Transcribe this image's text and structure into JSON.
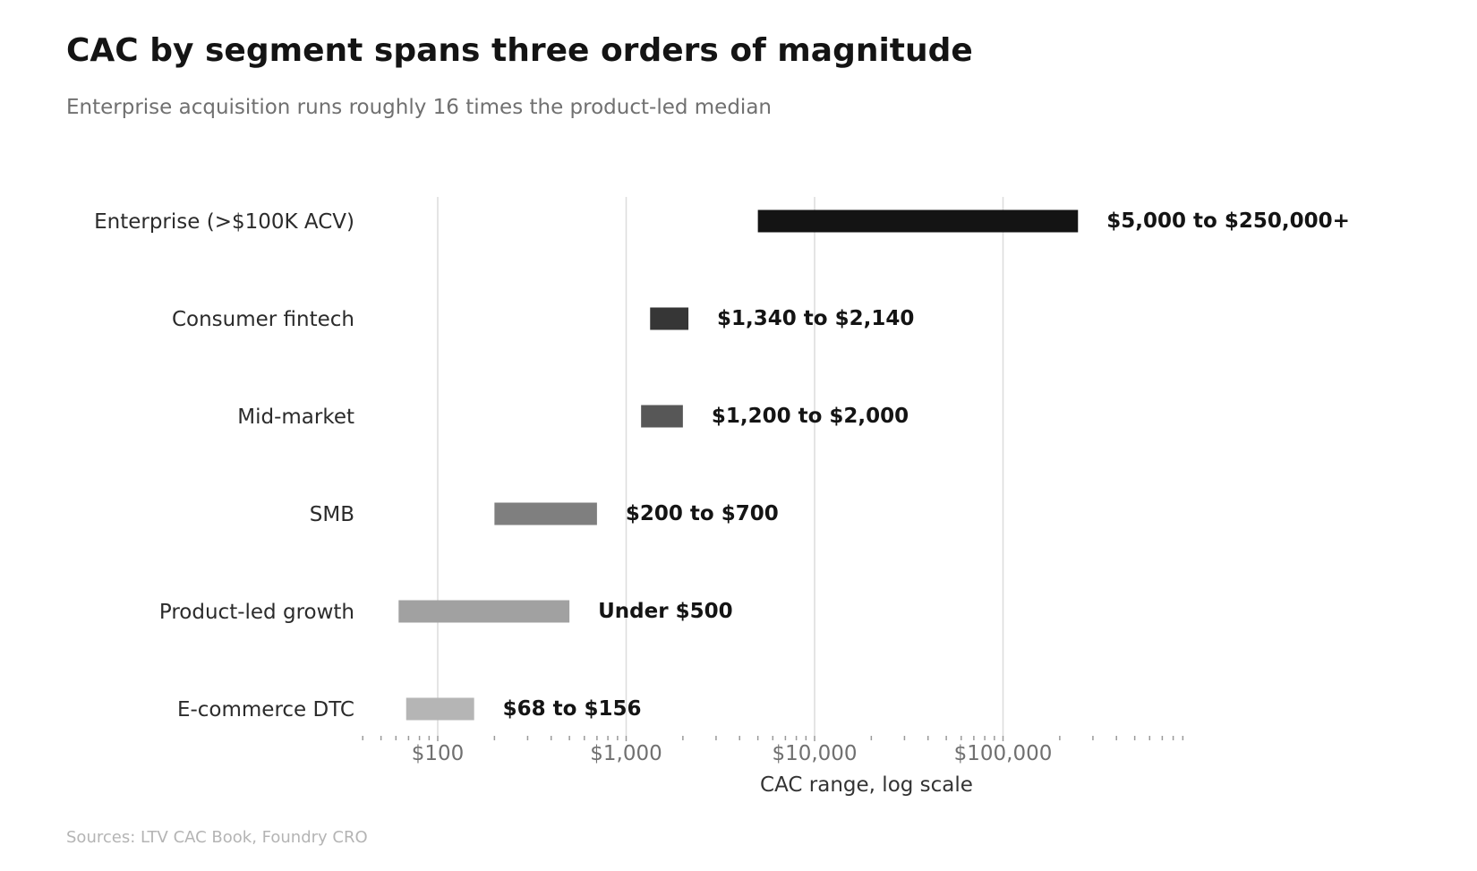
{
  "title": "CAC by segment spans three orders of magnitude",
  "subtitle": "Enterprise acquisition runs roughly 16 times the product-led median",
  "source": "Sources: LTV CAC Book, Foundry CRO",
  "chart_data": {
    "type": "bar",
    "orientation": "horizontal-range",
    "title": "CAC by segment spans three orders of magnitude",
    "xlabel": "CAC range, log scale",
    "xscale": "log",
    "xlim": [
      40,
      1000000
    ],
    "xticks": [
      {
        "value": 100,
        "label": "$100"
      },
      {
        "value": 1000,
        "label": "$1,000"
      },
      {
        "value": 10000,
        "label": "$10,000"
      },
      {
        "value": 100000,
        "label": "$100,000"
      }
    ],
    "grid": "vertical-major",
    "categories": [
      "Enterprise (>$100K ACV)",
      "Consumer fintech",
      "Mid-market",
      "SMB",
      "Product-led growth",
      "E-commerce DTC"
    ],
    "ranges": [
      {
        "low": 5000,
        "high": 250000,
        "label": "$5,000 to $250,000+",
        "color": "#141414"
      },
      {
        "low": 1340,
        "high": 2140,
        "label": "$1,340 to $2,140",
        "color": "#363636"
      },
      {
        "low": 1200,
        "high": 2000,
        "label": "$1,200 to $2,000",
        "color": "#575757"
      },
      {
        "low": 200,
        "high": 700,
        "label": "$200 to $700",
        "color": "#7f7f7f"
      },
      {
        "low": 62,
        "high": 500,
        "label": "Under $500",
        "color": "#a1a1a1"
      },
      {
        "low": 68,
        "high": 156,
        "label": "$68 to $156",
        "color": "#b5b5b5"
      }
    ]
  }
}
